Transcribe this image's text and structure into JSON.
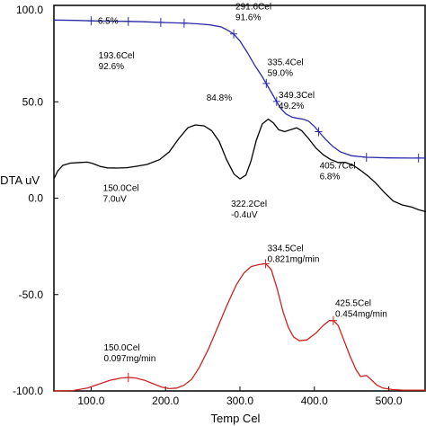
{
  "chart_data": {
    "type": "line",
    "xlabel": "Temp Cel",
    "ylabel": "DTA uV",
    "xlim": [
      50,
      550
    ],
    "ylim": [
      -100,
      100
    ],
    "x_ticks": [
      "100.0",
      "200.0",
      "300.0",
      "400.0",
      "500.0"
    ],
    "y_ticks": [
      "100.0",
      "50.0",
      "0.0",
      "-50.0",
      "-100.0"
    ],
    "grid": false,
    "series": [
      {
        "key": "tg",
        "color": "#2b2ba8",
        "points": [
          [
            50,
            92.4
          ],
          [
            80,
            92.2
          ],
          [
            100,
            92.0
          ],
          [
            130,
            91.8
          ],
          [
            150,
            91.7
          ],
          [
            170,
            91.5
          ],
          [
            185,
            91.3
          ],
          [
            200,
            91.1
          ],
          [
            215,
            90.9
          ],
          [
            230,
            90.7
          ],
          [
            245,
            90.4
          ],
          [
            260,
            89.9
          ],
          [
            275,
            88.8
          ],
          [
            285,
            86.8
          ],
          [
            292,
            85
          ],
          [
            300,
            81.5
          ],
          [
            310,
            75.5
          ],
          [
            320,
            68.8
          ],
          [
            330,
            63.0
          ],
          [
            336,
            59.0
          ],
          [
            342,
            55
          ],
          [
            349,
            50.2
          ],
          [
            355,
            46.5
          ],
          [
            362,
            43.7
          ],
          [
            370,
            42.0
          ],
          [
            378,
            41.4
          ],
          [
            385,
            41.0
          ],
          [
            392,
            40.0
          ],
          [
            400,
            37.2
          ],
          [
            406,
            34.5
          ],
          [
            415,
            30.5
          ],
          [
            425,
            26.8
          ],
          [
            435,
            24.0
          ],
          [
            450,
            22.0
          ],
          [
            470,
            21.2
          ],
          [
            500,
            20.9
          ],
          [
            530,
            20.8
          ],
          [
            550,
            20.8
          ]
        ]
      },
      {
        "key": "dta",
        "color": "#000000",
        "points": [
          [
            50,
            10
          ],
          [
            55,
            14
          ],
          [
            62,
            17
          ],
          [
            72,
            18.2
          ],
          [
            85,
            18.5
          ],
          [
            95,
            18.7
          ],
          [
            102,
            18
          ],
          [
            112,
            16.5
          ],
          [
            122,
            15.7
          ],
          [
            135,
            15.6
          ],
          [
            148,
            15.8
          ],
          [
            160,
            16.5
          ],
          [
            175,
            17.5
          ],
          [
            192,
            20
          ],
          [
            205,
            24
          ],
          [
            218,
            31
          ],
          [
            230,
            36.5
          ],
          [
            240,
            38
          ],
          [
            252,
            37.5
          ],
          [
            262,
            35
          ],
          [
            272,
            29.5
          ],
          [
            282,
            20
          ],
          [
            292,
            12.5
          ],
          [
            300,
            10
          ],
          [
            308,
            12
          ],
          [
            315,
            19.5
          ],
          [
            322,
            30
          ],
          [
            330,
            38.5
          ],
          [
            338,
            41
          ],
          [
            345,
            39
          ],
          [
            352,
            35.5
          ],
          [
            360,
            34.5
          ],
          [
            368,
            35.5
          ],
          [
            376,
            36.5
          ],
          [
            383,
            35
          ],
          [
            392,
            31
          ],
          [
            402,
            26
          ],
          [
            412,
            22.5
          ],
          [
            422,
            20
          ],
          [
            432,
            18.5
          ],
          [
            442,
            18.5
          ],
          [
            452,
            17
          ],
          [
            462,
            14.5
          ],
          [
            472,
            11.5
          ],
          [
            482,
            8
          ],
          [
            494,
            3
          ],
          [
            506,
            -1.5
          ],
          [
            518,
            -3.5
          ],
          [
            530,
            -4.5
          ],
          [
            540,
            -6
          ],
          [
            550,
            -7
          ]
        ]
      },
      {
        "key": "dtg",
        "color": "#cc2222",
        "points": [
          [
            50,
            -100
          ],
          [
            75,
            -99.8
          ],
          [
            95,
            -98.5
          ],
          [
            110,
            -96.5
          ],
          [
            125,
            -94.5
          ],
          [
            140,
            -93.3
          ],
          [
            150,
            -93
          ],
          [
            160,
            -93.3
          ],
          [
            172,
            -94.5
          ],
          [
            185,
            -96.5
          ],
          [
            195,
            -98
          ],
          [
            205,
            -98.8
          ],
          [
            215,
            -98.5
          ],
          [
            225,
            -97
          ],
          [
            235,
            -94
          ],
          [
            245,
            -88
          ],
          [
            258,
            -78
          ],
          [
            270,
            -67
          ],
          [
            282,
            -56
          ],
          [
            295,
            -45
          ],
          [
            305,
            -39
          ],
          [
            315,
            -35.5
          ],
          [
            325,
            -34.5
          ],
          [
            334.5,
            -34
          ],
          [
            342,
            -37
          ],
          [
            350,
            -47
          ],
          [
            358,
            -59
          ],
          [
            365,
            -67
          ],
          [
            372,
            -72
          ],
          [
            380,
            -74
          ],
          [
            390,
            -73.5
          ],
          [
            402,
            -70
          ],
          [
            412,
            -66
          ],
          [
            420,
            -63.5
          ],
          [
            425.5,
            -63.5
          ],
          [
            432,
            -66
          ],
          [
            440,
            -74
          ],
          [
            448,
            -82
          ],
          [
            456,
            -89
          ],
          [
            462,
            -92.5
          ],
          [
            470,
            -92
          ],
          [
            476,
            -94
          ],
          [
            484,
            -97
          ],
          [
            492,
            -98.5
          ],
          [
            505,
            -99.3
          ],
          [
            520,
            -99.6
          ],
          [
            550,
            -99.6
          ]
        ]
      }
    ],
    "markers": [
      {
        "series": "tg",
        "x": 100,
        "y": 92.0
      },
      {
        "series": "tg",
        "x": 150,
        "y": 91.7
      },
      {
        "series": "tg",
        "x": 193.6,
        "y": 91.2
      },
      {
        "series": "tg",
        "x": 225,
        "y": 90.8
      },
      {
        "series": "tg",
        "x": 291.6,
        "y": 85.2
      },
      {
        "series": "tg",
        "x": 335.4,
        "y": 59.5
      },
      {
        "series": "tg",
        "x": 349.3,
        "y": 50.2
      },
      {
        "series": "tg",
        "x": 405.7,
        "y": 34.5
      },
      {
        "series": "tg",
        "x": 470,
        "y": 21.2
      },
      {
        "series": "tg",
        "x": 540,
        "y": 20.8
      },
      {
        "series": "dtg",
        "x": 150.0,
        "y": -93.0
      },
      {
        "series": "dtg",
        "x": 334.5,
        "y": -34.0
      },
      {
        "series": "dtg",
        "x": 425.5,
        "y": -63.5
      }
    ],
    "annotations": [
      {
        "lines": [
          "291.6Cel",
          "91.6%"
        ],
        "x": 294,
        "y": 98
      },
      {
        "lines": [
          "6.5%"
        ],
        "x": 109,
        "y": 90.5
      },
      {
        "lines": [
          "193.6Cel",
          "92.6%"
        ],
        "x": 110,
        "y": 72.5
      },
      {
        "lines": [
          "335.4Cel",
          "59.0%"
        ],
        "x": 337,
        "y": 69
      },
      {
        "lines": [
          "349.3Cel",
          "49.2%"
        ],
        "x": 352,
        "y": 52
      },
      {
        "lines": [
          "84.8%"
        ],
        "x": 255,
        "y": 50.5
      },
      {
        "lines": [
          "405.7Cel",
          "6.8%"
        ],
        "x": 407,
        "y": 15.5
      },
      {
        "lines": [
          "150.0Cel",
          "7.0uV"
        ],
        "x": 116,
        "y": 3.8
      },
      {
        "lines": [
          "322.2Cel",
          "-0.4uV"
        ],
        "x": 288,
        "y": -4.5
      },
      {
        "lines": [
          "334.5Cel",
          "0.821mg/min"
        ],
        "x": 337,
        "y": -27.5
      },
      {
        "lines": [
          "425.5Cel",
          "0.454mg/min"
        ],
        "x": 428,
        "y": -56
      },
      {
        "lines": [
          "150.0Cel",
          "0.097mg/min"
        ],
        "x": 117,
        "y": -79
      }
    ]
  }
}
